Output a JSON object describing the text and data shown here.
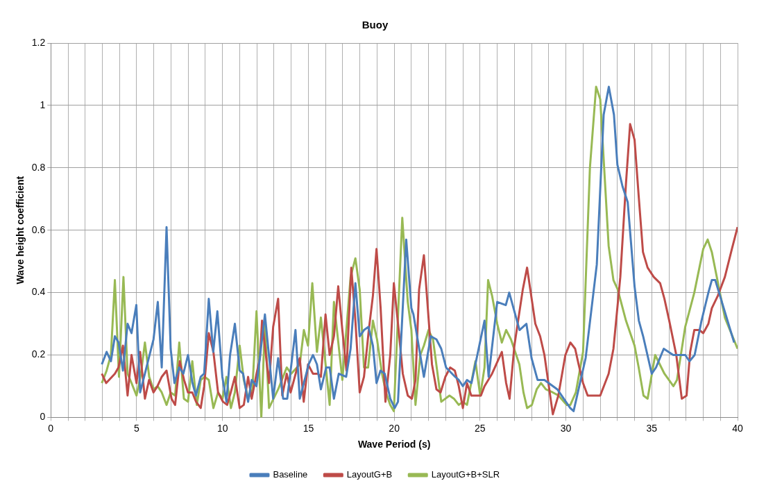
{
  "chart_data": {
    "type": "line",
    "title": "Buoy",
    "xlabel": "Wave Period (s)",
    "ylabel": "Wave height coefficient",
    "xlim": [
      0,
      40
    ],
    "ylim": [
      0,
      1.2
    ],
    "xticks": [
      0,
      {
        "value": 1,
        "label": null
      },
      {
        "value": 2,
        "label": null
      },
      {
        "value": 3,
        "label": null
      },
      {
        "value": 4,
        "label": null
      },
      5,
      {
        "value": 6,
        "label": null
      },
      {
        "value": 7,
        "label": null
      },
      {
        "value": 8,
        "label": null
      },
      {
        "value": 9,
        "label": null
      },
      10,
      {
        "value": 11,
        "label": null
      },
      {
        "value": 12,
        "label": null
      },
      {
        "value": 13,
        "label": null
      },
      {
        "value": 14,
        "label": null
      },
      15,
      {
        "value": 16,
        "label": null
      },
      {
        "value": 17,
        "label": null
      },
      {
        "value": 18,
        "label": null
      },
      {
        "value": 19,
        "label": null
      },
      20,
      {
        "value": 21,
        "label": null
      },
      {
        "value": 22,
        "label": null
      },
      {
        "value": 23,
        "label": null
      },
      {
        "value": 24,
        "label": null
      },
      25,
      {
        "value": 26,
        "label": null
      },
      {
        "value": 27,
        "label": null
      },
      {
        "value": 28,
        "label": null
      },
      {
        "value": 29,
        "label": null
      },
      30,
      {
        "value": 31,
        "label": null
      },
      {
        "value": 32,
        "label": null
      },
      {
        "value": 33,
        "label": null
      },
      {
        "value": 34,
        "label": null
      },
      35,
      {
        "value": 36,
        "label": null
      },
      {
        "value": 37,
        "label": null
      },
      {
        "value": 38,
        "label": null
      },
      {
        "value": 39,
        "label": null
      },
      40
    ],
    "yticks": [
      0,
      0.2,
      0.4,
      0.6,
      0.8,
      1,
      1.2
    ],
    "grid": true,
    "legend": "bottom",
    "line_style": "solid",
    "series": [
      {
        "name": "Baseline",
        "color": "#4a7ebb",
        "x": [
          2.97,
          3.25,
          3.5,
          3.73,
          3.95,
          4.2,
          4.47,
          4.7,
          4.98,
          5.2,
          5.48,
          5.75,
          5.98,
          6.23,
          6.46,
          6.74,
          6.98,
          7.2,
          7.47,
          7.72,
          7.99,
          8.25,
          8.45,
          8.73,
          8.93,
          9.2,
          9.46,
          9.7,
          9.99,
          10.23,
          10.44,
          10.72,
          11.0,
          11.2,
          11.49,
          11.7,
          11.98,
          12.47,
          12.95,
          13.24,
          13.53,
          13.77,
          14.25,
          14.5,
          15.02,
          15.27,
          15.5,
          15.73,
          16.04,
          16.24,
          16.49,
          16.77,
          17.2,
          17.46,
          17.74,
          17.99,
          18.24,
          18.5,
          18.76,
          18.97,
          19.2,
          19.45,
          19.77,
          20.03,
          20.22,
          20.7,
          21.0,
          21.12,
          21.73,
          22.13,
          22.46,
          22.74,
          23.02,
          23.55,
          23.76,
          24.0,
          24.24,
          24.5,
          25.26,
          25.5,
          26.0,
          26.5,
          26.7,
          27.3,
          27.7,
          28.0,
          28.35,
          28.75,
          29.5,
          30.25,
          30.45,
          31.15,
          31.8,
          32.2,
          32.5,
          32.8,
          33.0,
          33.3,
          33.6,
          34.0,
          34.25,
          34.5,
          35.0,
          35.25,
          35.7,
          36.25,
          36.95,
          37.2,
          37.5,
          37.9,
          38.3,
          38.5,
          38.7,
          39.8
        ],
        "values": [
          0.17,
          0.21,
          0.18,
          0.26,
          0.24,
          0.15,
          0.3,
          0.27,
          0.36,
          0.08,
          0.14,
          0.2,
          0.25,
          0.37,
          0.16,
          0.61,
          0.22,
          0.11,
          0.16,
          0.14,
          0.2,
          0.11,
          0.07,
          0.13,
          0.14,
          0.38,
          0.21,
          0.34,
          0.13,
          0.05,
          0.2,
          0.3,
          0.15,
          0.14,
          0.05,
          0.12,
          0.1,
          0.33,
          0.06,
          0.19,
          0.06,
          0.06,
          0.28,
          0.06,
          0.17,
          0.2,
          0.17,
          0.09,
          0.16,
          0.16,
          0.06,
          0.14,
          0.13,
          0.22,
          0.43,
          0.26,
          0.28,
          0.29,
          0.23,
          0.11,
          0.15,
          0.14,
          0.06,
          0.03,
          0.05,
          0.57,
          0.35,
          0.33,
          0.13,
          0.26,
          0.25,
          0.22,
          0.16,
          0.13,
          0.12,
          0.1,
          0.12,
          0.11,
          0.31,
          0.13,
          0.37,
          0.36,
          0.4,
          0.28,
          0.3,
          0.19,
          0.12,
          0.12,
          0.09,
          0.03,
          0.02,
          0.19,
          0.49,
          0.97,
          1.06,
          0.97,
          0.81,
          0.74,
          0.69,
          0.42,
          0.31,
          0.26,
          0.14,
          0.16,
          0.22,
          0.2,
          0.2,
          0.18,
          0.2,
          0.31,
          0.4,
          0.44,
          0.44,
          0.24
        ]
      },
      {
        "name": "LayoutG+B",
        "color": "#be4b48",
        "x": [
          2.97,
          3.22,
          3.73,
          3.94,
          4.2,
          4.47,
          4.7,
          4.99,
          5.2,
          5.48,
          5.72,
          5.98,
          6.21,
          6.46,
          6.74,
          7.03,
          7.24,
          7.51,
          7.76,
          7.99,
          8.24,
          8.46,
          8.73,
          8.93,
          9.2,
          9.47,
          9.74,
          10.03,
          10.27,
          10.48,
          10.72,
          11.0,
          11.24,
          11.49,
          11.7,
          11.98,
          12.18,
          12.3,
          12.71,
          12.95,
          13.24,
          13.48,
          13.74,
          13.97,
          14.5,
          14.73,
          14.98,
          15.27,
          15.55,
          15.73,
          16.0,
          16.24,
          16.49,
          16.74,
          16.98,
          17.22,
          17.5,
          17.74,
          17.99,
          18.24,
          18.52,
          18.76,
          18.97,
          19.21,
          19.49,
          19.77,
          19.98,
          20.26,
          20.5,
          20.79,
          21.03,
          21.24,
          21.45,
          21.73,
          22.2,
          22.46,
          22.7,
          22.98,
          23.26,
          23.53,
          23.76,
          24.0,
          24.24,
          24.49,
          24.77,
          25.05,
          25.26,
          25.7,
          26.27,
          26.52,
          26.72,
          27.0,
          27.49,
          27.74,
          28.22,
          28.5,
          28.75,
          29.24,
          29.56,
          29.97,
          30.26,
          30.54,
          30.74,
          31.0,
          31.27,
          31.55,
          31.76,
          32.0,
          32.49,
          32.77,
          33.17,
          33.5,
          33.74,
          34.0,
          34.24,
          34.49,
          34.76,
          35.12,
          35.49,
          35.74,
          36.02,
          36.43,
          36.75,
          37.03,
          37.24,
          37.48,
          37.77,
          38.0,
          38.3,
          38.5,
          38.85,
          39.26,
          39.67,
          40.0
        ],
        "values": [
          0.14,
          0.11,
          0.14,
          0.16,
          0.23,
          0.07,
          0.2,
          0.11,
          0.21,
          0.06,
          0.12,
          0.08,
          0.1,
          0.13,
          0.15,
          0.06,
          0.04,
          0.18,
          0.12,
          0.08,
          0.08,
          0.05,
          0.03,
          0.1,
          0.27,
          0.21,
          0.08,
          0.05,
          0.04,
          0.08,
          0.13,
          0.03,
          0.04,
          0.13,
          0.06,
          0.14,
          0.19,
          0.31,
          0.11,
          0.29,
          0.38,
          0.07,
          0.14,
          0.08,
          0.19,
          0.05,
          0.17,
          0.14,
          0.14,
          0.13,
          0.33,
          0.2,
          0.26,
          0.42,
          0.28,
          0.15,
          0.48,
          0.31,
          0.08,
          0.13,
          0.28,
          0.39,
          0.54,
          0.35,
          0.05,
          0.2,
          0.43,
          0.28,
          0.14,
          0.07,
          0.06,
          0.12,
          0.41,
          0.52,
          0.17,
          0.09,
          0.08,
          0.13,
          0.16,
          0.15,
          0.1,
          0.03,
          0.11,
          0.07,
          0.07,
          0.07,
          0.1,
          0.14,
          0.21,
          0.11,
          0.06,
          0.23,
          0.41,
          0.48,
          0.3,
          0.26,
          0.2,
          0.01,
          0.07,
          0.2,
          0.24,
          0.22,
          0.17,
          0.11,
          0.07,
          0.07,
          0.07,
          0.07,
          0.14,
          0.22,
          0.45,
          0.75,
          0.94,
          0.89,
          0.71,
          0.53,
          0.48,
          0.45,
          0.43,
          0.38,
          0.31,
          0.2,
          0.06,
          0.07,
          0.21,
          0.28,
          0.28,
          0.27,
          0.3,
          0.35,
          0.39,
          0.45,
          0.54,
          0.61
        ]
      },
      {
        "name": "LayoutG+B+SLR",
        "color": "#98b954",
        "x": [
          2.97,
          3.25,
          3.5,
          3.73,
          3.97,
          4.23,
          4.47,
          4.7,
          4.99,
          5.25,
          5.48,
          5.73,
          5.98,
          6.22,
          6.46,
          6.74,
          6.98,
          7.24,
          7.48,
          7.75,
          7.99,
          8.24,
          8.5,
          8.73,
          8.96,
          9.2,
          9.47,
          9.74,
          10.0,
          10.23,
          10.49,
          10.72,
          11.0,
          11.24,
          11.5,
          11.74,
          11.98,
          12.26,
          12.47,
          12.71,
          13.24,
          13.74,
          14.0,
          14.5,
          14.74,
          14.98,
          15.23,
          15.5,
          15.73,
          16.24,
          16.49,
          16.98,
          17.46,
          17.74,
          17.99,
          18.24,
          18.48,
          18.76,
          19.0,
          19.29,
          19.52,
          19.77,
          19.98,
          20.47,
          20.79,
          21.0,
          21.24,
          21.52,
          21.73,
          22.0,
          22.26,
          22.74,
          23.22,
          23.48,
          23.76,
          24.0,
          24.24,
          24.73,
          25.01,
          25.26,
          25.47,
          25.7,
          26.0,
          26.27,
          26.52,
          26.8,
          27.29,
          27.53,
          27.74,
          28.02,
          28.3,
          28.55,
          28.83,
          29.24,
          29.57,
          30.05,
          30.26,
          30.58,
          31.0,
          31.4,
          31.76,
          32.0,
          32.49,
          32.77,
          33.02,
          33.5,
          34.0,
          34.24,
          34.52,
          34.76,
          35.2,
          35.74,
          36.26,
          36.47,
          36.95,
          37.48,
          38.0,
          38.26,
          38.5,
          39.26,
          40.0
        ],
        "values": [
          0.11,
          0.15,
          0.2,
          0.44,
          0.13,
          0.45,
          0.14,
          0.11,
          0.07,
          0.14,
          0.24,
          0.13,
          0.09,
          0.1,
          0.08,
          0.04,
          0.08,
          0.07,
          0.24,
          0.06,
          0.05,
          0.18,
          0.04,
          0.12,
          0.13,
          0.12,
          0.03,
          0.08,
          0.06,
          0.13,
          0.03,
          0.08,
          0.23,
          0.12,
          0.06,
          0.09,
          0.34,
          0,
          0.3,
          0.03,
          0.09,
          0.16,
          0.14,
          0.17,
          0.28,
          0.23,
          0.43,
          0.21,
          0.32,
          0.04,
          0.37,
          0.12,
          0.45,
          0.51,
          0.41,
          0.16,
          0.16,
          0.31,
          0.25,
          0.14,
          0.08,
          0.04,
          0.02,
          0.64,
          0.37,
          0.28,
          0.04,
          0.2,
          0.23,
          0.28,
          0.25,
          0.05,
          0.07,
          0.06,
          0.04,
          0.05,
          0.04,
          0.18,
          0.07,
          0.16,
          0.44,
          0.39,
          0.3,
          0.24,
          0.28,
          0.25,
          0.17,
          0.08,
          0.03,
          0.04,
          0.09,
          0.11,
          0.09,
          0.08,
          0.07,
          0.04,
          0.04,
          0.08,
          0.21,
          0.8,
          1.06,
          1.02,
          0.55,
          0.44,
          0.41,
          0.31,
          0.23,
          0.16,
          0.07,
          0.06,
          0.2,
          0.14,
          0.1,
          0.12,
          0.29,
          0.4,
          0.54,
          0.57,
          0.53,
          0.32,
          0.22
        ]
      }
    ]
  }
}
